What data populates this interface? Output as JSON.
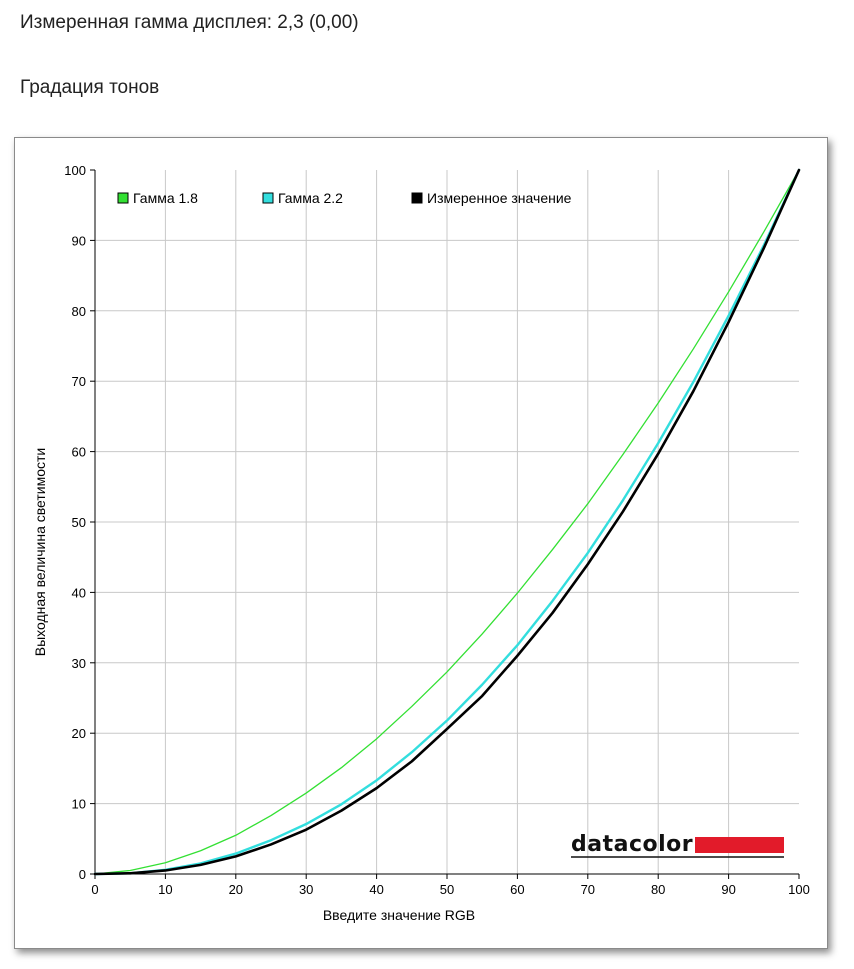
{
  "page": {
    "measured_gamma": "Измеренная гамма дисплея: 2,3 (0,00)",
    "section_title": "Градация тонов"
  },
  "brand": {
    "logo_text": "datacolor",
    "logo_color": "#e21b2a"
  },
  "chart_data": {
    "type": "line",
    "xlabel": "Введите значение RGB",
    "ylabel": "Выходная величина светимости",
    "xlim": [
      0,
      100
    ],
    "ylim": [
      0,
      100
    ],
    "x_ticks": [
      0,
      10,
      20,
      30,
      40,
      50,
      60,
      70,
      80,
      90,
      100
    ],
    "y_ticks": [
      0,
      10,
      20,
      30,
      40,
      50,
      60,
      70,
      80,
      90,
      100
    ],
    "grid": true,
    "legend_position": "top-left",
    "x": [
      0,
      5,
      10,
      15,
      20,
      25,
      30,
      35,
      40,
      45,
      50,
      55,
      60,
      65,
      70,
      75,
      80,
      85,
      90,
      95,
      100
    ],
    "series": [
      {
        "name": "Гамма 1.8",
        "color": "#33e033",
        "values": [
          0,
          0.5,
          1.6,
          3.3,
          5.5,
          8.3,
          11.5,
          15.1,
          19.2,
          23.8,
          28.7,
          34.1,
          39.9,
          46.1,
          52.6,
          59.6,
          66.9,
          74.6,
          82.7,
          91.2,
          100
        ]
      },
      {
        "name": "Гамма 2.2",
        "color": "#33dede",
        "values": [
          0,
          0.1,
          0.6,
          1.5,
          2.9,
          4.8,
          7.1,
          9.9,
          13.3,
          17.3,
          21.8,
          26.9,
          32.5,
          38.8,
          45.6,
          53.1,
          61.2,
          69.9,
          79.3,
          89.3,
          100
        ]
      },
      {
        "name": "Измеренное значение",
        "color": "#000000",
        "values": [
          0,
          0.1,
          0.5,
          1.3,
          2.5,
          4.2,
          6.3,
          9.0,
          12.2,
          16.0,
          20.6,
          25.3,
          31.0,
          37.1,
          44.0,
          51.5,
          59.7,
          68.6,
          78.4,
          88.9,
          100
        ]
      }
    ]
  }
}
